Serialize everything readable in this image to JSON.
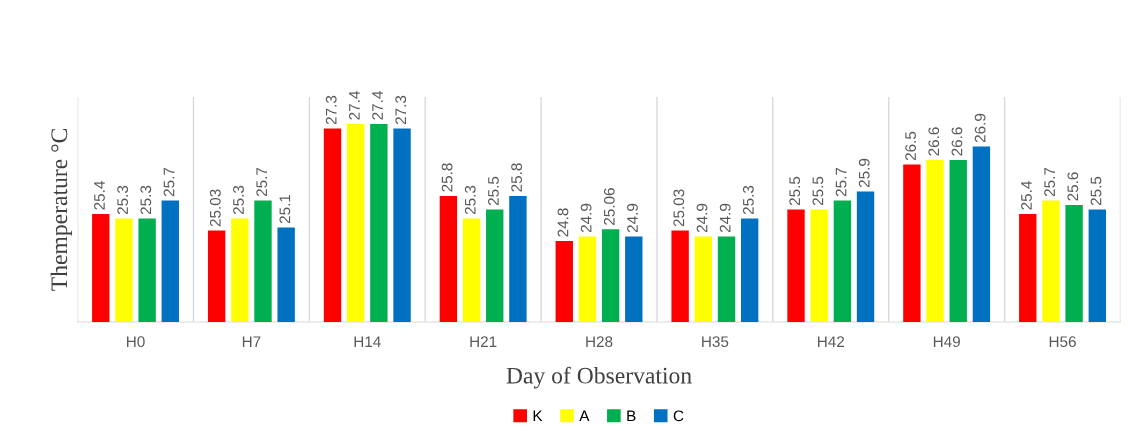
{
  "chart_data": {
    "type": "bar",
    "xlabel": "Day of Observation",
    "ylabel": "Themperature °C",
    "categories": [
      "H0",
      "H7",
      "H14",
      "H21",
      "H28",
      "H35",
      "H42",
      "H49",
      "H56"
    ],
    "series": [
      {
        "name": "K",
        "color": "#ff0000",
        "values": [
          25.4,
          25.03,
          27.3,
          25.8,
          24.8,
          25.03,
          25.5,
          26.5,
          25.4
        ]
      },
      {
        "name": "A",
        "color": "#ffff00",
        "values": [
          25.3,
          25.3,
          27.4,
          25.3,
          24.9,
          24.9,
          25.5,
          26.6,
          25.7
        ]
      },
      {
        "name": "B",
        "color": "#00b050",
        "values": [
          25.3,
          25.7,
          27.4,
          25.5,
          25.06,
          24.9,
          25.7,
          26.6,
          25.6
        ]
      },
      {
        "name": "C",
        "color": "#0070c0",
        "values": [
          25.7,
          25.1,
          27.3,
          25.8,
          24.9,
          25.3,
          25.9,
          26.9,
          25.5
        ]
      }
    ],
    "ylim": [
      23,
      28
    ],
    "tick_labels": "x",
    "data_labels": true,
    "grid": "x",
    "legend": "bottom"
  }
}
